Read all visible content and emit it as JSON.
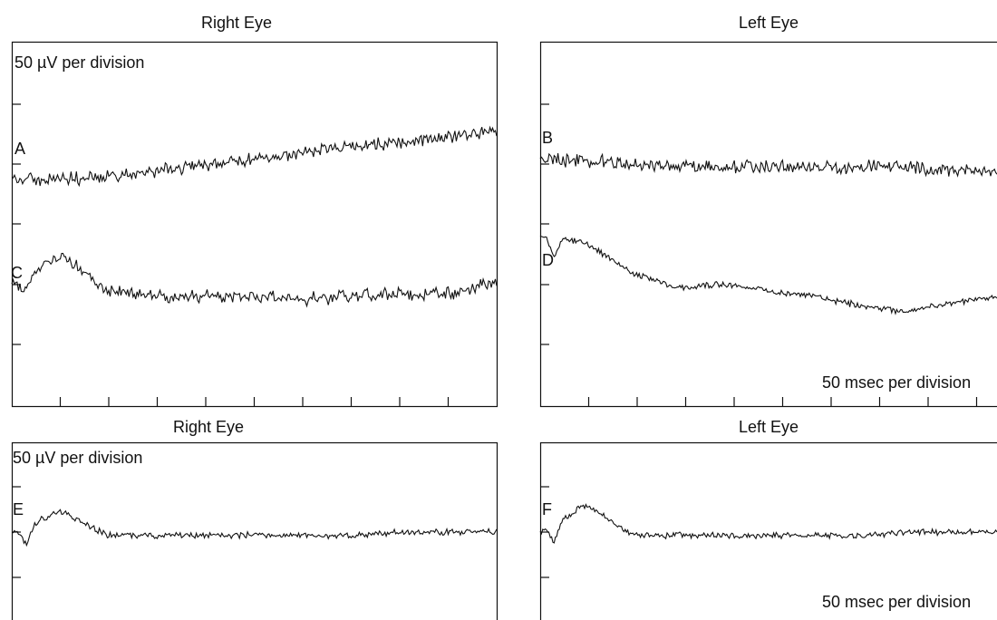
{
  "chart_data": [
    {
      "type": "line",
      "title": "Right Eye",
      "annotations": {
        "scale_label": "50 µV per division"
      },
      "x_divisions": 10,
      "y_divisions": 6,
      "series": [
        {
          "label": "A",
          "trace": "flat_rising",
          "values": [
            -0.3,
            -0.25,
            -0.2,
            -0.1,
            0.0,
            0.1,
            0.2,
            0.3,
            0.35,
            0.45,
            0.55
          ]
        },
        {
          "label": "C",
          "trace": "erg_noisy",
          "values": [
            0.0,
            0.5,
            -0.1,
            -0.2,
            -0.2,
            -0.2,
            -0.25,
            -0.2,
            -0.15,
            -0.15,
            0.05
          ]
        }
      ]
    },
    {
      "type": "line",
      "title": "Left Eye",
      "annotations": {
        "scale_label": "50 msec per division"
      },
      "x_divisions": 10,
      "y_divisions": 6,
      "series": [
        {
          "label": "B",
          "trace": "flat",
          "values": [
            0.1,
            0.05,
            0.0,
            -0.05,
            -0.05,
            -0.05,
            -0.05,
            -0.05,
            -0.05,
            -0.1,
            -0.1
          ]
        },
        {
          "label": "D",
          "trace": "erg_slow",
          "values": [
            0.8,
            0.7,
            0.2,
            -0.05,
            0.0,
            -0.1,
            -0.2,
            -0.35,
            -0.45,
            -0.3,
            -0.2
          ]
        }
      ]
    },
    {
      "type": "line",
      "title": "Right Eye",
      "annotations": {
        "scale_label": "50 µV per division"
      },
      "x_divisions": 10,
      "y_divisions": 4,
      "series": [
        {
          "label": "E",
          "trace": "erg_small",
          "values": [
            0.0,
            0.3,
            -0.05,
            -0.05,
            -0.05,
            -0.05,
            -0.05,
            -0.05,
            0.0,
            0.0,
            0.0
          ]
        }
      ]
    },
    {
      "type": "line",
      "title": "Left Eye",
      "annotations": {
        "scale_label": "50 msec per division"
      },
      "x_divisions": 10,
      "y_divisions": 4,
      "series": [
        {
          "label": "F",
          "trace": "erg_small",
          "values": [
            0.0,
            0.4,
            -0.05,
            -0.05,
            -0.05,
            -0.05,
            -0.05,
            -0.05,
            0.0,
            0.0,
            0.0
          ]
        }
      ]
    }
  ]
}
